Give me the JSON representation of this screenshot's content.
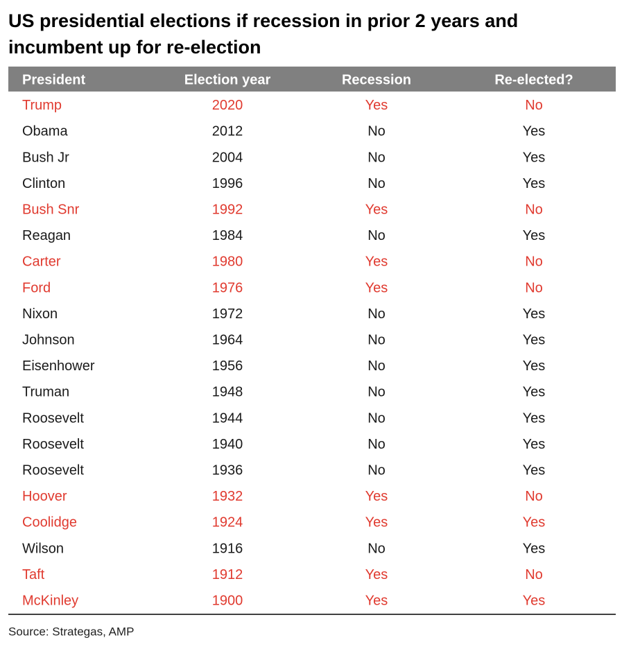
{
  "header": {
    "title_lines": [
      "US presidential elections if recession in prior 2 years and",
      "incumbent up for re-election"
    ]
  },
  "table": {
    "columns": [
      "President",
      "Election year",
      "Recession",
      "Re-elected?"
    ],
    "rows": [
      {
        "cells": [
          "Trump",
          "2020",
          "Yes",
          "No"
        ],
        "color": "#e03a2f"
      },
      {
        "cells": [
          "Obama",
          "2012",
          "No",
          "Yes"
        ],
        "color": "#1a1a1a"
      },
      {
        "cells": [
          "Bush Jr",
          "2004",
          "No",
          "Yes"
        ],
        "color": "#1a1a1a"
      },
      {
        "cells": [
          "Clinton",
          "1996",
          "No",
          "Yes"
        ],
        "color": "#1a1a1a"
      },
      {
        "cells": [
          "Bush Snr",
          "1992",
          "Yes",
          "No"
        ],
        "color": "#e03a2f"
      },
      {
        "cells": [
          "Reagan",
          "1984",
          "No",
          "Yes"
        ],
        "color": "#1a1a1a"
      },
      {
        "cells": [
          "Carter",
          "1980",
          "Yes",
          "No"
        ],
        "color": "#e03a2f"
      },
      {
        "cells": [
          "Ford",
          "1976",
          "Yes",
          "No"
        ],
        "color": "#e03a2f"
      },
      {
        "cells": [
          "Nixon",
          "1972",
          "No",
          "Yes"
        ],
        "color": "#1a1a1a"
      },
      {
        "cells": [
          "Johnson",
          "1964",
          "No",
          "Yes"
        ],
        "color": "#1a1a1a"
      },
      {
        "cells": [
          "Eisenhower",
          "1956",
          "No",
          "Yes"
        ],
        "color": "#1a1a1a"
      },
      {
        "cells": [
          "Truman",
          "1948",
          "No",
          "Yes"
        ],
        "color": "#1a1a1a"
      },
      {
        "cells": [
          "Roosevelt",
          "1944",
          "No",
          "Yes"
        ],
        "color": "#1a1a1a"
      },
      {
        "cells": [
          "Roosevelt",
          "1940",
          "No",
          "Yes"
        ],
        "color": "#1a1a1a"
      },
      {
        "cells": [
          "Roosevelt",
          "1936",
          "No",
          "Yes"
        ],
        "color": "#1a1a1a"
      },
      {
        "cells": [
          "Hoover",
          "1932",
          "Yes",
          "No"
        ],
        "color": "#e03a2f"
      },
      {
        "cells": [
          "Coolidge",
          "1924",
          "Yes",
          "Yes"
        ],
        "color": "#e03a2f"
      },
      {
        "cells": [
          "Wilson",
          "1916",
          "No",
          "Yes"
        ],
        "color": "#1a1a1a"
      },
      {
        "cells": [
          "Taft",
          "1912",
          "Yes",
          "No"
        ],
        "color": "#e03a2f"
      },
      {
        "cells": [
          "McKinley",
          "1900",
          "Yes",
          "Yes"
        ],
        "color": "#e03a2f"
      }
    ]
  },
  "footer": {
    "source": "Source: Strategas, AMP"
  }
}
